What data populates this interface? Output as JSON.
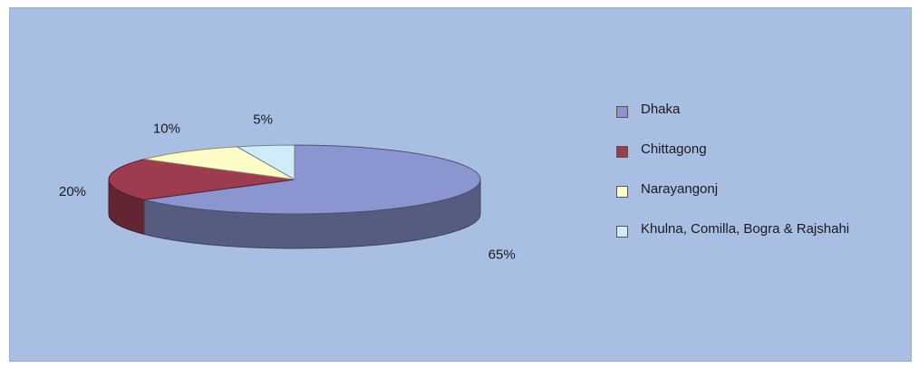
{
  "chart_data": {
    "type": "pie",
    "style": "3d-pie",
    "categories": [
      "Dhaka",
      "Chittagong",
      "Narayangonj",
      "Khulna, Comilla, Bogra & Rajshahi"
    ],
    "values": [
      65,
      20,
      10,
      5
    ],
    "value_labels": [
      "65%",
      "20%",
      "10%",
      "5%"
    ],
    "colors": [
      "#8b95cf",
      "#9e3c4f",
      "#fdfcc6",
      "#cfecfb"
    ],
    "legend_position": "right",
    "background_color": "#a8bfe3"
  }
}
